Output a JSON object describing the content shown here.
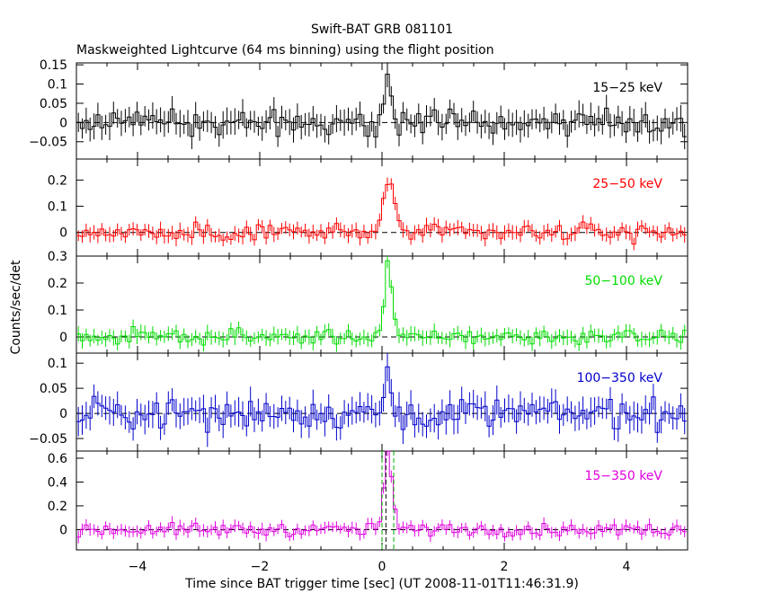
{
  "chart_data": {
    "type": "line",
    "style": "step-histogram with error bars",
    "title": "Swift-BAT GRB 081101",
    "subtitle": "Maskweighted Lightcurve (64 ms binning) using the flight position",
    "xlabel": "Time since BAT trigger time [sec] (UT 2008-11-01T11:46:31.9)",
    "ylabel": "Counts/sec/det",
    "xlim": [
      -5,
      5
    ],
    "x_ticks": [
      -4,
      -2,
      0,
      2,
      4
    ],
    "x_tick_labels": [
      "−4",
      "−2",
      "0",
      "2",
      "4"
    ],
    "bin_width_s": 0.064,
    "markers": [
      0.0,
      0.064,
      0.192
    ],
    "panels": [
      {
        "name": "15-25",
        "label": "15−25 keV",
        "color": "#000000",
        "ylim": [
          -0.095,
          0.155
        ],
        "yticks": [
          -0.05,
          0,
          0.05,
          0.1,
          0.15
        ],
        "ytick_labels": [
          "−0.05",
          "0",
          "0.05",
          "0.1",
          "0.15"
        ],
        "noise": 0.03,
        "err": 0.03,
        "peak": 0.11,
        "width": 0.07
      },
      {
        "name": "25-50",
        "label": "25−50 keV",
        "color": "#ff0000",
        "ylim": [
          -0.09,
          0.28
        ],
        "yticks": [
          0,
          0.1,
          0.2
        ],
        "ytick_labels": [
          "0",
          "0.1",
          "0.2"
        ],
        "noise": 0.03,
        "err": 0.025,
        "peak": 0.22,
        "width": 0.08
      },
      {
        "name": "50-100",
        "label": "50−100 keV",
        "color": "#00dd00",
        "ylim": [
          -0.06,
          0.3
        ],
        "yticks": [
          0,
          0.1,
          0.2,
          0.3
        ],
        "ytick_labels": [
          "0",
          "0.1",
          "0.2",
          "0.3"
        ],
        "noise": 0.025,
        "err": 0.025,
        "peak": 0.28,
        "width": 0.06
      },
      {
        "name": "100-350",
        "label": "100−350 keV",
        "color": "#0000cc",
        "ylim": [
          -0.075,
          0.12
        ],
        "yticks": [
          -0.05,
          0,
          0.05,
          0.1
        ],
        "ytick_labels": [
          "−0.05",
          "0",
          "0.05",
          "0.1"
        ],
        "noise": 0.028,
        "err": 0.025,
        "peak": 0.09,
        "width": 0.05
      },
      {
        "name": "15-350",
        "label": "15−350 keV",
        "color": "#e000e0",
        "ylim": [
          -0.17,
          0.66
        ],
        "yticks": [
          0,
          0.2,
          0.4,
          0.6
        ],
        "ytick_labels": [
          "0",
          "0.2",
          "0.4",
          "0.6"
        ],
        "noise": 0.05,
        "err": 0.045,
        "peak": 0.62,
        "width": 0.07
      }
    ]
  }
}
